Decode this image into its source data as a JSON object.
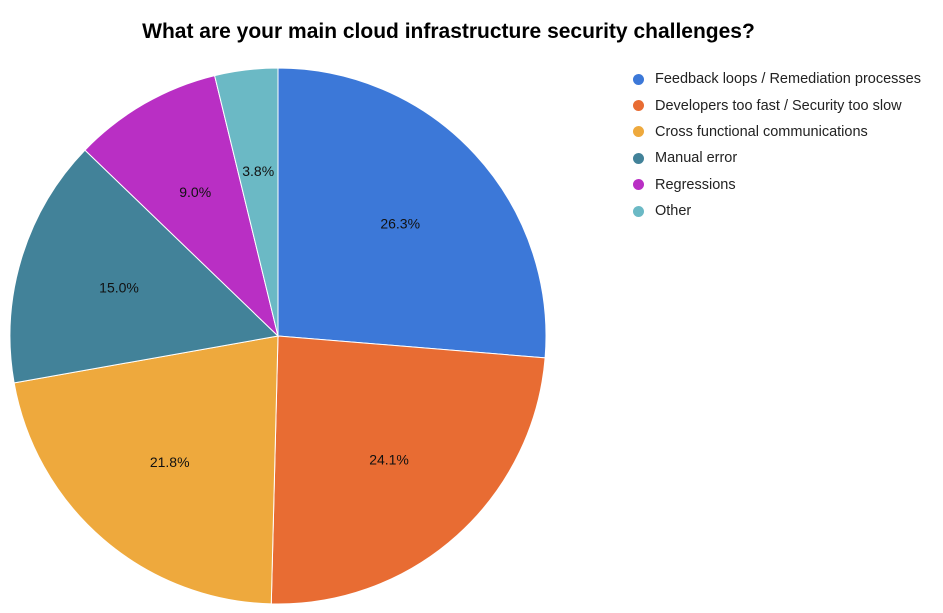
{
  "chart_data": {
    "type": "pie",
    "title": "What are your main cloud infrastructure security challenges?",
    "legend_position": "right",
    "slices": [
      {
        "name": "Feedback loops / Remediation processes",
        "value": 26.3,
        "label": "26.3%",
        "color": "#3c78d8"
      },
      {
        "name": "Developers too fast / Security too slow",
        "value": 24.1,
        "label": "24.1%",
        "color": "#e86c33"
      },
      {
        "name": "Cross functional communications",
        "value": 21.8,
        "label": "21.8%",
        "color": "#eea93d"
      },
      {
        "name": "Manual error",
        "value": 15.0,
        "label": "15.0%",
        "color": "#428299"
      },
      {
        "name": "Regressions",
        "value": 9.0,
        "label": "9.0%",
        "color": "#b92fc4"
      },
      {
        "name": "Other",
        "value": 3.8,
        "label": "3.8%",
        "color": "#6bb9c5"
      }
    ]
  }
}
